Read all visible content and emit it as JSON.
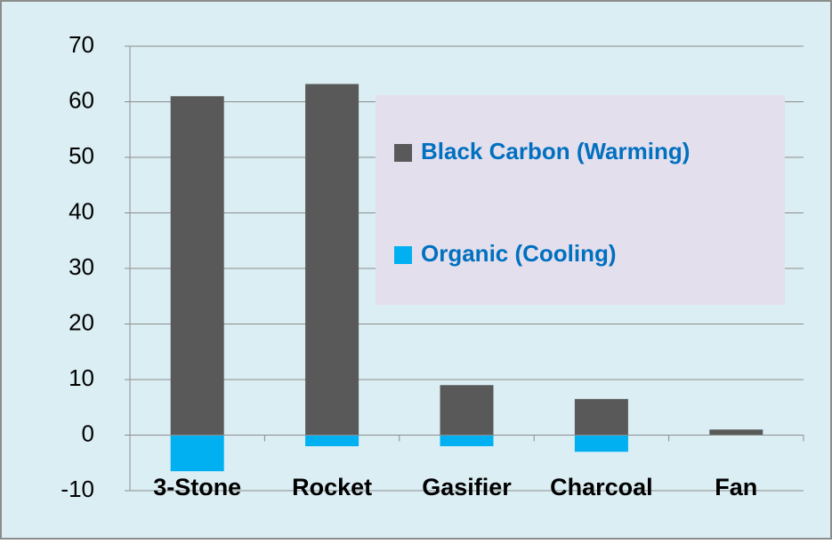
{
  "chart_data": {
    "type": "bar",
    "categories": [
      "3-Stone",
      "Rocket",
      "Gasifier",
      "Charcoal",
      "Fan"
    ],
    "series": [
      {
        "name": "Black Carbon (Warming)",
        "color": "#595959",
        "values": [
          61,
          63.2,
          9,
          6.5,
          1
        ]
      },
      {
        "name": "Organic (Cooling)",
        "color": "#00b0f0",
        "values": [
          -6.5,
          -2,
          -2,
          -3,
          0
        ]
      }
    ],
    "ylim": [
      -10,
      70
    ],
    "yticks": [
      -10,
      0,
      10,
      20,
      30,
      40,
      50,
      60,
      70
    ],
    "grid": true,
    "legend": "upper right"
  }
}
